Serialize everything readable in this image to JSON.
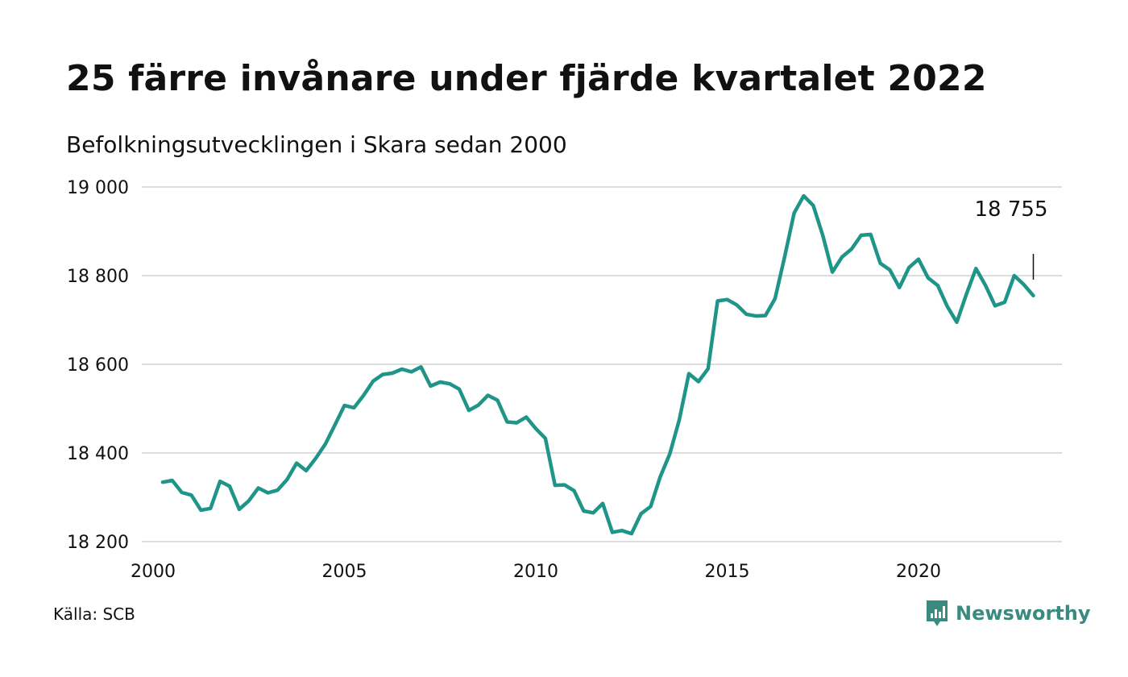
{
  "title": "25 färre invånare under fjärde kvartalet 2022",
  "subtitle": "Befolkningsutvecklingen i Skara sedan 2000",
  "source": "Källa: SCB",
  "brand": {
    "name": "Newsworthy",
    "icon": "newsworthy-logo-icon",
    "color": "#3a8a7f"
  },
  "colors": {
    "line": "#1f9488",
    "grid": "#dddddd",
    "text": "#111111"
  },
  "chart_data": {
    "type": "line",
    "xlim": [
      2000,
      2023.5
    ],
    "ylim": [
      18200,
      19000
    ],
    "yticks": [
      18200,
      18400,
      18600,
      18800,
      19000
    ],
    "ytick_labels": [
      "18 200",
      "18 400",
      "18 600",
      "18 800",
      "19 000"
    ],
    "xticks": [
      2000,
      2005,
      2010,
      2015,
      2020
    ],
    "xtick_labels": [
      "2000",
      "2005",
      "2010",
      "2015",
      "2020"
    ],
    "grid": true,
    "annotation": {
      "text": "18 755",
      "x": 2023.0,
      "y": 18755
    },
    "series": [
      {
        "x": [
          2000.25,
          2000.5,
          2000.75,
          2001.0,
          2001.25,
          2001.5,
          2001.75,
          2002.0,
          2002.25,
          2002.5,
          2002.75,
          2003.0,
          2003.25,
          2003.5,
          2003.75,
          2004.0,
          2004.25,
          2004.5,
          2004.75,
          2005.0,
          2005.25,
          2005.5,
          2005.75,
          2006.0,
          2006.25,
          2006.5,
          2006.75,
          2007.0,
          2007.25,
          2007.5,
          2007.75,
          2008.0,
          2008.25,
          2008.5,
          2008.75,
          2009.0,
          2009.25,
          2009.5,
          2009.75,
          2010.0,
          2010.25,
          2010.5,
          2010.75,
          2011.0,
          2011.25,
          2011.5,
          2011.75,
          2012.0,
          2012.25,
          2012.5,
          2012.75,
          2013.0,
          2013.25,
          2013.5,
          2013.75,
          2014.0,
          2014.25,
          2014.5,
          2014.75,
          2015.0,
          2015.25,
          2015.5,
          2015.75,
          2016.0,
          2016.25,
          2016.5,
          2016.75,
          2017.0,
          2017.25,
          2017.5,
          2017.75,
          2018.0,
          2018.25,
          2018.5,
          2018.75,
          2019.0,
          2019.25,
          2019.5,
          2019.75,
          2020.0,
          2020.25,
          2020.5,
          2020.75,
          2021.0,
          2021.25,
          2021.5,
          2021.75,
          2022.0,
          2022.25,
          2022.5,
          2022.75,
          2023.0
        ],
        "values": [
          18334,
          18338,
          18311,
          18305,
          18271,
          18275,
          18336,
          18325,
          18273,
          18292,
          18321,
          18310,
          18316,
          18340,
          18377,
          18360,
          18388,
          18420,
          18463,
          18507,
          18502,
          18530,
          18562,
          18577,
          18580,
          18589,
          18583,
          18594,
          18551,
          18560,
          18556,
          18544,
          18496,
          18508,
          18530,
          18519,
          18470,
          18468,
          18481,
          18455,
          18433,
          18327,
          18328,
          18315,
          18269,
          18265,
          18286,
          18221,
          18225,
          18218,
          18263,
          18279,
          18346,
          18398,
          18475,
          18579,
          18561,
          18590,
          18743,
          18746,
          18734,
          18713,
          18709,
          18710,
          18748,
          18842,
          18941,
          18980,
          18958,
          18890,
          18808,
          18842,
          18860,
          18891,
          18893,
          18828,
          18813,
          18773,
          18818,
          18837,
          18795,
          18778,
          18731,
          18695,
          18758,
          18816,
          18778,
          18732,
          18740,
          18800,
          18780,
          18755
        ]
      }
    ]
  }
}
